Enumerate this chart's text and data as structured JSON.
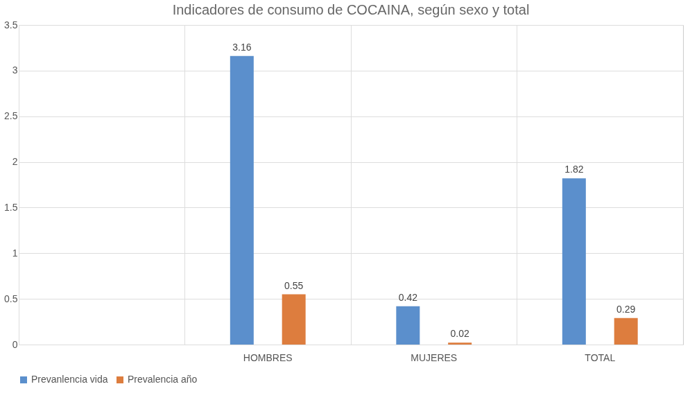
{
  "chart_data": {
    "type": "bar",
    "title": "Indicadores de consumo de COCAINA, según sexo y total",
    "categories": [
      null,
      "HOMBRES",
      "MUJERES",
      "TOTAL"
    ],
    "series": [
      {
        "name": "Prevanlencia vida",
        "color": "#5b8fcc",
        "values": [
          null,
          3.16,
          0.42,
          1.82
        ]
      },
      {
        "name": "Prevalencia año",
        "color": "#dd7d3e",
        "values": [
          null,
          0.55,
          0.02,
          0.29
        ]
      }
    ],
    "ylim": [
      0,
      3.5
    ],
    "yticks": [
      0,
      0.5,
      1,
      1.5,
      2,
      2.5,
      3,
      3.5
    ],
    "grid": true,
    "legend": "bottom",
    "data_labels": true
  }
}
